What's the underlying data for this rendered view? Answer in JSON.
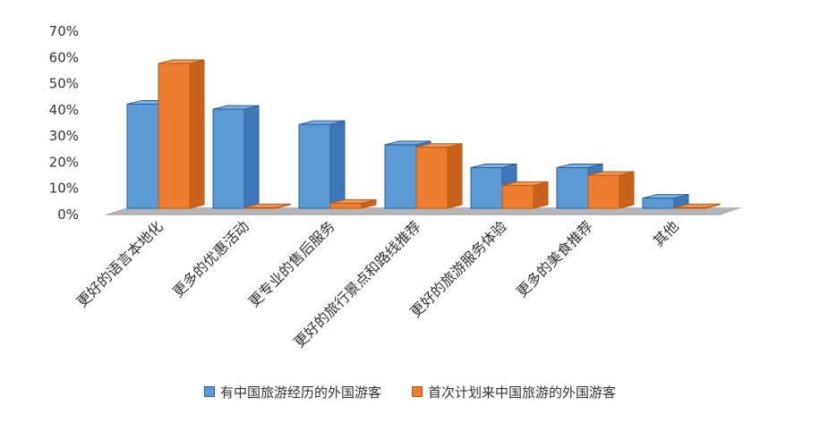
{
  "chart_data": {
    "type": "bar",
    "categories": [
      "更好的语言本地化",
      "更多的优惠活动",
      "更专业的售后服务",
      "更好的旅行景点和路线推荐",
      "更好的旅游服务体验",
      "更多的美食推荐",
      "其他"
    ],
    "series": [
      {
        "name": "有中国旅游经历的外国游客",
        "color": "#5b9bd5",
        "values": [
          41,
          39,
          33,
          25,
          16,
          16,
          4
        ]
      },
      {
        "name": "首次计划来中国旅游的外国游客",
        "color": "#ed7d31",
        "values": [
          57,
          0,
          2,
          24,
          9,
          13,
          0
        ]
      }
    ],
    "y_ticks": [
      "0%",
      "10%",
      "20%",
      "30%",
      "40%",
      "50%",
      "60%",
      "70%"
    ],
    "ylim": [
      0,
      70
    ],
    "legend_position": "bottom",
    "grid": false
  }
}
